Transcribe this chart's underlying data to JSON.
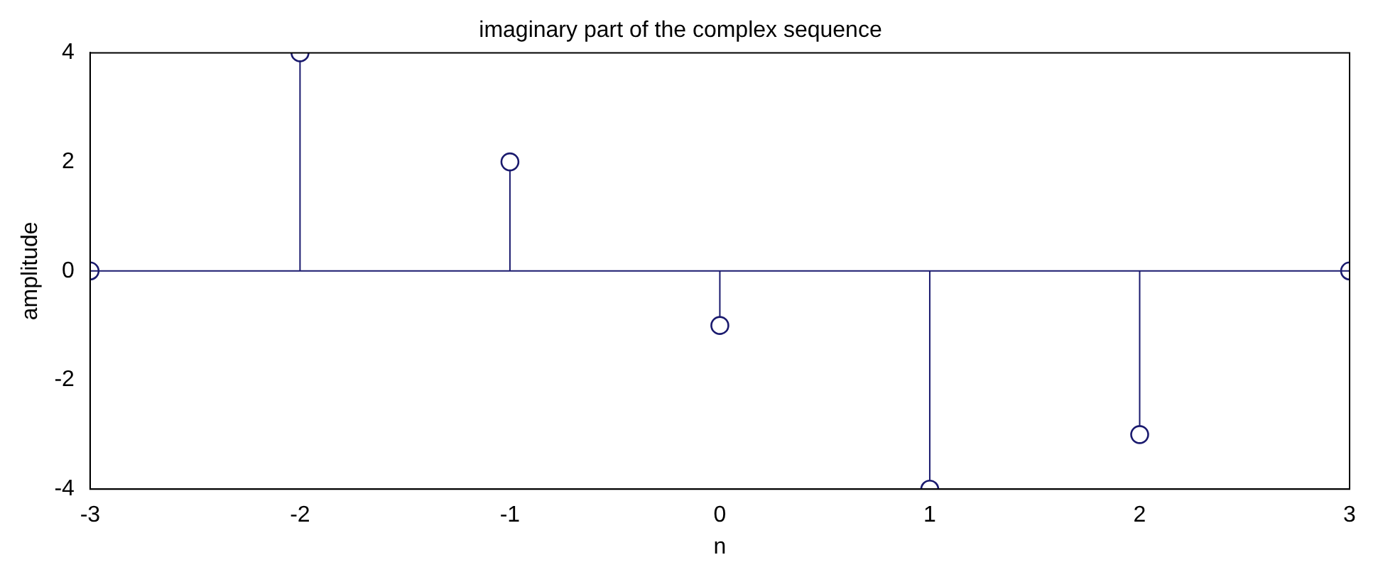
{
  "chart_data": {
    "type": "lollipop",
    "title": "imaginary part of the complex sequence",
    "xlabel": "n",
    "ylabel": "amplitude",
    "x": [
      -3,
      -2,
      -1,
      0,
      1,
      2,
      3
    ],
    "values": [
      0,
      4,
      2,
      -1,
      -4,
      -3,
      0
    ],
    "color": "#1a1a6e",
    "marker": "circle",
    "grid": false,
    "legend": false,
    "xlim": [
      -3,
      3
    ],
    "xticks": [
      -3,
      -2,
      -1,
      0,
      1,
      2,
      3
    ],
    "ylim": [
      -4,
      4
    ],
    "yticks": [
      -4,
      -2,
      0,
      2,
      4
    ],
    "ref_lines": [
      {
        "axis": "y",
        "value": 0,
        "color": "#1a1a6e"
      }
    ]
  }
}
